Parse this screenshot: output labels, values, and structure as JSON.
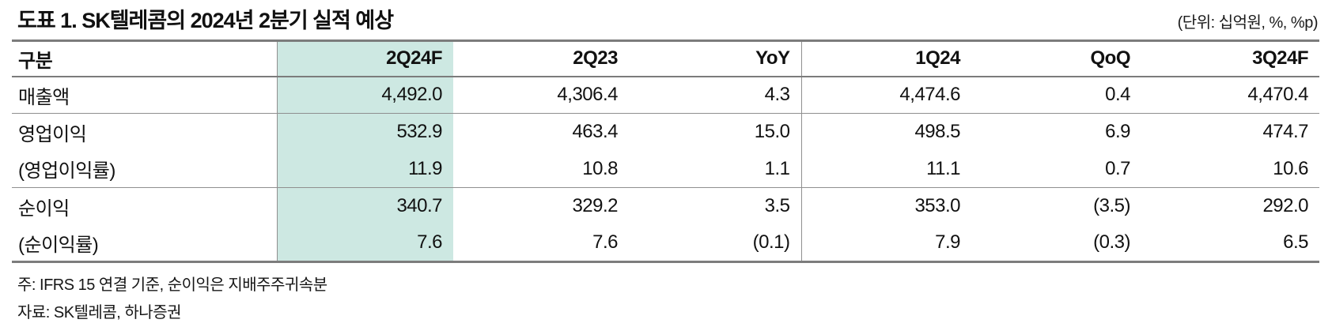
{
  "header": {
    "title": "도표 1. SK텔레콤의 2024년 2분기 실적 예상",
    "unit_note": "(단위: 십억원, %, %p)"
  },
  "table": {
    "columns": [
      "구분",
      "2Q24F",
      "2Q23",
      "YoY",
      "1Q24",
      "QoQ",
      "3Q24F"
    ],
    "highlighted_column": "2Q24F",
    "colors": {
      "highlight": "#cde8e2",
      "border_heavy": "#7c7c7c",
      "border_light": "#8f8f8f"
    },
    "rows": [
      {
        "label": "매출액",
        "values": [
          "4,492.0",
          "4,306.4",
          "4.3",
          "4,474.6",
          "0.4",
          "4,470.4"
        ]
      },
      {
        "label": "영업이익",
        "values": [
          "532.9",
          "463.4",
          "15.0",
          "498.5",
          "6.9",
          "474.7"
        ]
      },
      {
        "label": "(영업이익률)",
        "values": [
          "11.9",
          "10.8",
          "1.1",
          "11.1",
          "0.7",
          "10.6"
        ]
      },
      {
        "label": "순이익",
        "values": [
          "340.7",
          "329.2",
          "3.5",
          "353.0",
          "(3.5)",
          "292.0"
        ]
      },
      {
        "label": "(순이익률)",
        "values": [
          "7.6",
          "7.6",
          "(0.1)",
          "7.9",
          "(0.3)",
          "6.5"
        ]
      }
    ]
  },
  "footnotes": {
    "note": "주: IFRS 15 연결 기준, 순이익은 지배주주귀속분",
    "source": "자료: SK텔레콤, 하나증권"
  }
}
